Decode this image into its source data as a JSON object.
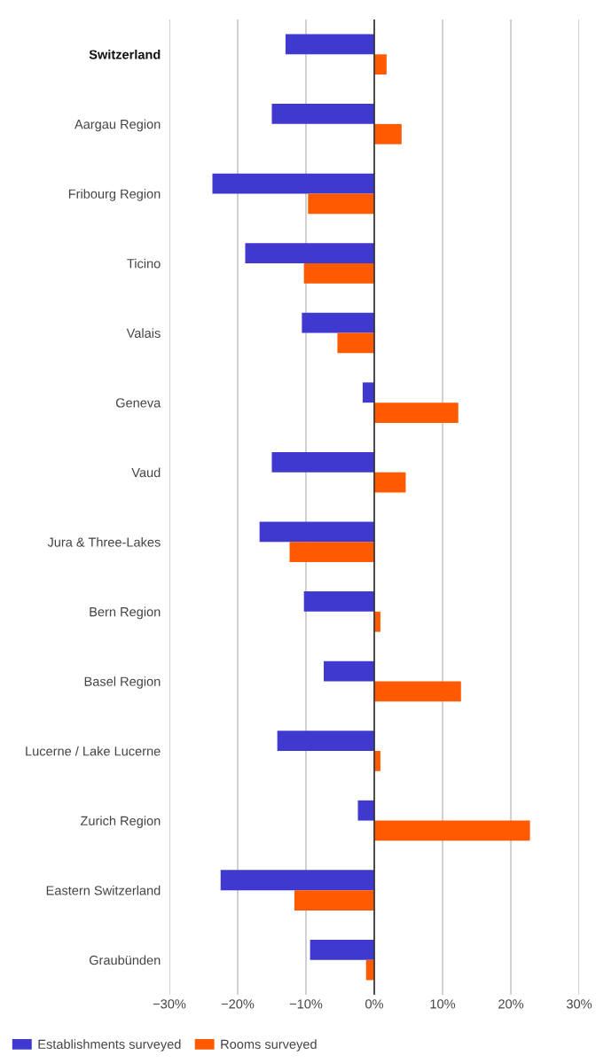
{
  "chart_data": {
    "type": "bar",
    "orientation": "horizontal",
    "categories": [
      "Switzerland",
      "Aargau Region",
      "Fribourg Region",
      "Ticino",
      "Valais",
      "Geneva",
      "Vaud",
      "Jura & Three-Lakes",
      "Bern Region",
      "Basel Region",
      "Lucerne / Lake Lucerne",
      "Zurich Region",
      "Eastern Switzerland",
      "Graubünden"
    ],
    "series": [
      {
        "name": "Establishments surveyed",
        "color": "#3f39d0",
        "values": [
          -13.0,
          -15.0,
          -23.7,
          -18.9,
          -10.6,
          -1.7,
          -15.0,
          -16.8,
          -10.3,
          -7.4,
          -14.2,
          -2.4,
          -22.5,
          -9.4
        ]
      },
      {
        "name": "Rooms surveyed",
        "color": "#ff5a00",
        "values": [
          1.8,
          4.0,
          -9.7,
          -10.3,
          -5.4,
          12.3,
          4.6,
          -12.4,
          0.9,
          12.7,
          0.9,
          22.8,
          -11.7,
          -1.2
        ]
      }
    ],
    "xlim": [
      -30,
      30
    ],
    "xticks": [
      {
        "value": -30,
        "label": "−30%"
      },
      {
        "value": -20,
        "label": "−20%"
      },
      {
        "value": -10,
        "label": "−10%"
      },
      {
        "value": 0,
        "label": "0%"
      },
      {
        "value": 10,
        "label": "10%"
      },
      {
        "value": 20,
        "label": "20%"
      },
      {
        "value": 30,
        "label": "30%"
      }
    ],
    "grid": "x",
    "legend": "bottom left"
  }
}
